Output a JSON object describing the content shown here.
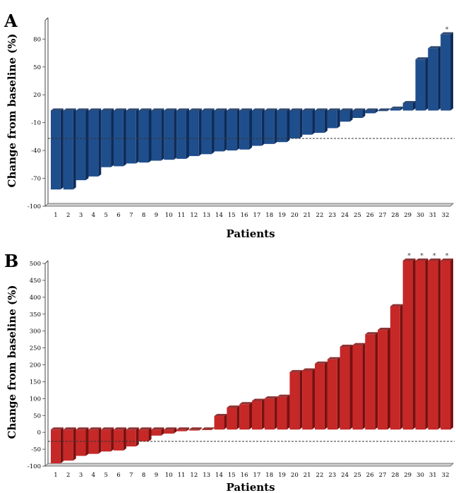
{
  "chart_data": [
    {
      "type": "bar",
      "panel_label": "A",
      "ylabel": "Change from baseline (%)",
      "xlabel": "Patients",
      "categories": [
        "1",
        "2",
        "3",
        "4",
        "5",
        "6",
        "7",
        "8",
        "9",
        "10",
        "11",
        "12",
        "13",
        "14",
        "15",
        "16",
        "17",
        "18",
        "19",
        "20",
        "21",
        "22",
        "23",
        "24",
        "25",
        "26",
        "27",
        "28",
        "29",
        "30",
        "31",
        "32"
      ],
      "values": [
        -85,
        -85,
        -75,
        -71,
        -61,
        -60,
        -57,
        -56,
        -54,
        -53,
        -52,
        -49,
        -47,
        -44,
        -43,
        -42,
        -38,
        -36,
        -34,
        -30,
        -26,
        -24,
        -19,
        -12,
        -8,
        -3,
        0,
        2,
        8,
        55,
        67,
        82
      ],
      "y_ticks": [
        -100,
        -70,
        -40,
        -10,
        20,
        50,
        80
      ],
      "y_tick_labels": [
        "-100",
        "-70",
        "-40",
        "-10",
        "20",
        "50",
        "80"
      ],
      "ylim": [
        -100,
        100
      ],
      "reference_line": -30,
      "starred": [
        "32"
      ],
      "star_symbol": "*",
      "bar_color": "#1f4e8c",
      "bar_dark": "#0d2c5a"
    },
    {
      "type": "bar",
      "panel_label": "B",
      "ylabel": "Change from baseline (%)",
      "xlabel": "Patients",
      "categories": [
        "1",
        "2",
        "3",
        "4",
        "5",
        "6",
        "7",
        "8",
        "9",
        "10",
        "11",
        "12",
        "13",
        "14",
        "15",
        "16",
        "17",
        "18",
        "19",
        "20",
        "21",
        "22",
        "23",
        "24",
        "25",
        "26",
        "27",
        "28",
        "29",
        "30",
        "31",
        "32"
      ],
      "values": [
        -100,
        -92,
        -78,
        -72,
        -65,
        -62,
        -50,
        -35,
        -18,
        -12,
        -5,
        -3,
        -1,
        40,
        65,
        75,
        85,
        92,
        97,
        170,
        175,
        195,
        208,
        245,
        250,
        282,
        295,
        365,
        500,
        500,
        500,
        500
      ],
      "y_ticks": [
        -100,
        -50,
        0,
        50,
        100,
        150,
        200,
        250,
        300,
        350,
        400,
        450,
        500
      ],
      "y_tick_labels": [
        "-100",
        "-50",
        "0",
        "50",
        "100",
        "150",
        "200",
        "250",
        "300",
        "350",
        "400",
        "450",
        "500"
      ],
      "ylim": [
        -100,
        500
      ],
      "reference_line": -35,
      "starred": [
        "29",
        "30",
        "31",
        "32"
      ],
      "star_symbol": "*",
      "bar_color": "#c62828",
      "bar_dark": "#7a1010"
    }
  ]
}
